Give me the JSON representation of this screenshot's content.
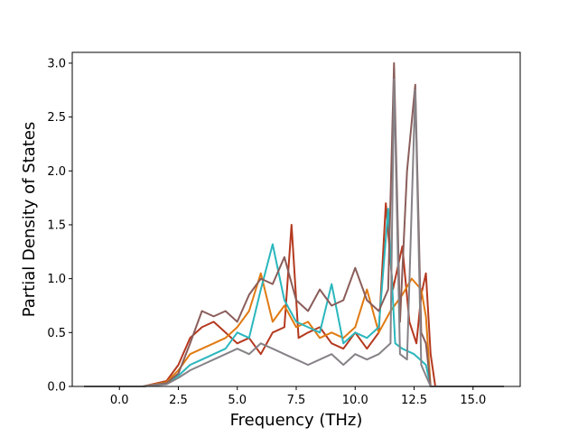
{
  "chart_data": {
    "type": "line",
    "title": "",
    "xlabel": "Frequency (THz)",
    "ylabel": "Partial Density of States",
    "xlim": [
      -2.0,
      17.0
    ],
    "ylim": [
      0.0,
      3.1
    ],
    "xticks": [
      0.0,
      2.5,
      5.0,
      7.5,
      10.0,
      12.5,
      15.0
    ],
    "xtick_labels": [
      "0.0",
      "2.5",
      "5.0",
      "7.5",
      "10.0",
      "12.5",
      "15.0"
    ],
    "yticks": [
      0.0,
      0.5,
      1.0,
      1.5,
      2.0,
      2.5,
      3.0
    ],
    "ytick_labels": [
      "0.0",
      "0.5",
      "1.0",
      "1.5",
      "2.0",
      "2.5",
      "3.0"
    ],
    "grid": false,
    "legend": "none",
    "series": [
      {
        "color": "#b5391f",
        "x": [
          -1.5,
          1.0,
          2.0,
          2.5,
          3.0,
          3.5,
          4.0,
          4.5,
          5.0,
          5.5,
          6.0,
          6.5,
          7.0,
          7.3,
          7.6,
          8.0,
          8.5,
          9.0,
          9.5,
          10.0,
          10.5,
          11.0,
          11.3,
          11.6,
          12.0,
          12.3,
          12.6,
          12.8,
          13.0,
          13.2,
          13.4,
          16.3
        ],
        "y": [
          0.0,
          0.0,
          0.05,
          0.2,
          0.45,
          0.55,
          0.6,
          0.5,
          0.4,
          0.45,
          0.3,
          0.5,
          0.55,
          1.5,
          0.45,
          0.5,
          0.55,
          0.4,
          0.35,
          0.5,
          0.35,
          0.5,
          1.7,
          0.9,
          1.3,
          0.6,
          0.4,
          0.85,
          1.05,
          0.3,
          0.0,
          0.0
        ]
      },
      {
        "color": "#e07a12",
        "x": [
          -1.5,
          1.0,
          2.0,
          2.5,
          3.0,
          3.5,
          4.0,
          4.5,
          5.0,
          5.5,
          6.0,
          6.5,
          7.0,
          7.5,
          8.0,
          8.5,
          9.0,
          9.5,
          10.0,
          10.5,
          11.0,
          11.5,
          12.0,
          12.4,
          12.8,
          13.0,
          13.2,
          16.3
        ],
        "y": [
          0.0,
          0.0,
          0.04,
          0.15,
          0.3,
          0.35,
          0.4,
          0.45,
          0.55,
          0.7,
          1.05,
          0.6,
          0.75,
          0.55,
          0.6,
          0.45,
          0.5,
          0.45,
          0.55,
          0.9,
          0.5,
          0.7,
          0.85,
          1.0,
          0.9,
          0.65,
          0.0,
          0.0
        ]
      },
      {
        "color": "#2ab7bd",
        "x": [
          -1.5,
          1.0,
          2.0,
          2.5,
          3.0,
          3.5,
          4.0,
          4.5,
          5.0,
          5.5,
          6.0,
          6.5,
          7.0,
          7.5,
          8.0,
          8.5,
          9.0,
          9.5,
          10.0,
          10.5,
          11.0,
          11.4,
          11.7,
          12.0,
          12.5,
          13.0,
          13.2,
          16.3
        ],
        "y": [
          0.0,
          0.0,
          0.03,
          0.1,
          0.2,
          0.25,
          0.3,
          0.35,
          0.5,
          0.45,
          0.9,
          1.32,
          0.8,
          0.6,
          0.55,
          0.5,
          0.95,
          0.4,
          0.5,
          0.45,
          0.55,
          1.65,
          0.4,
          0.35,
          0.3,
          0.2,
          0.0,
          0.0
        ]
      },
      {
        "color": "#8a5d5a",
        "x": [
          -1.5,
          1.0,
          2.0,
          2.5,
          3.0,
          3.5,
          4.0,
          4.5,
          5.0,
          5.5,
          6.0,
          6.5,
          7.0,
          7.5,
          8.0,
          8.5,
          9.0,
          9.5,
          10.0,
          10.5,
          11.0,
          11.4,
          11.65,
          11.9,
          12.2,
          12.55,
          12.8,
          13.0,
          13.2,
          16.3
        ],
        "y": [
          0.0,
          0.0,
          0.03,
          0.12,
          0.4,
          0.7,
          0.65,
          0.7,
          0.6,
          0.85,
          1.0,
          0.95,
          1.2,
          0.8,
          0.7,
          0.9,
          0.75,
          0.8,
          1.1,
          0.8,
          0.7,
          0.9,
          3.0,
          0.6,
          2.0,
          2.8,
          0.5,
          0.4,
          0.0,
          0.0
        ]
      },
      {
        "color": "#868287",
        "x": [
          -1.5,
          1.0,
          2.0,
          2.5,
          3.0,
          3.5,
          4.0,
          4.5,
          5.0,
          5.5,
          6.0,
          6.5,
          7.0,
          7.5,
          8.0,
          8.5,
          9.0,
          9.5,
          10.0,
          10.5,
          11.0,
          11.5,
          11.65,
          11.9,
          12.2,
          12.55,
          12.8,
          13.0,
          13.2,
          16.3
        ],
        "y": [
          0.0,
          0.0,
          0.02,
          0.08,
          0.15,
          0.2,
          0.25,
          0.3,
          0.35,
          0.3,
          0.4,
          0.35,
          0.3,
          0.25,
          0.2,
          0.25,
          0.3,
          0.2,
          0.3,
          0.25,
          0.3,
          0.4,
          2.85,
          0.3,
          0.25,
          2.75,
          0.2,
          0.1,
          0.0,
          0.0
        ]
      }
    ]
  }
}
